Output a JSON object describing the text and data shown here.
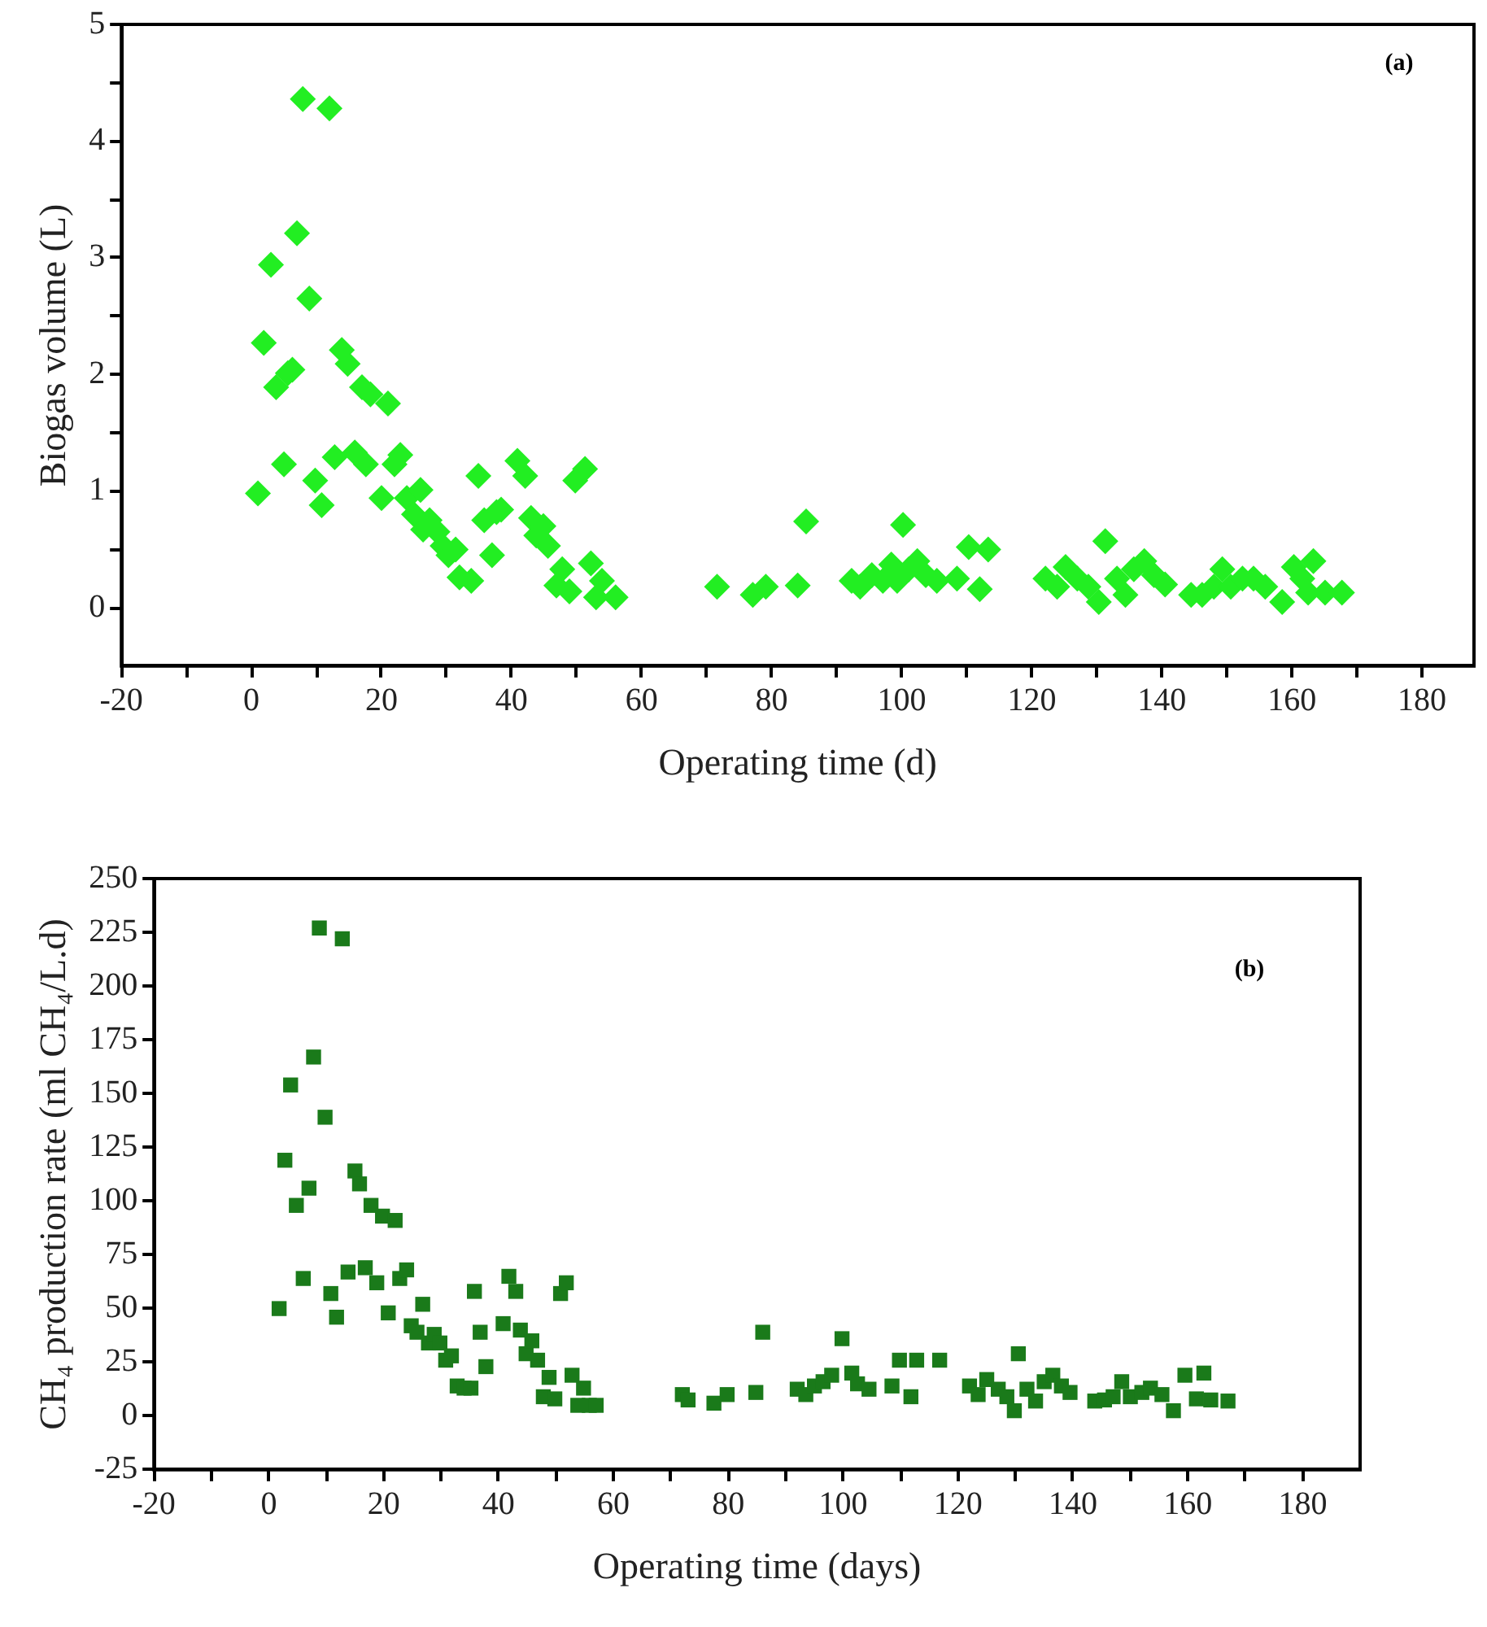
{
  "chart_data": [
    {
      "type": "scatter",
      "xlabel": "Operating time (d)",
      "ylabel": "Biogas volume (L)",
      "color": "#22ee22",
      "marker": "diamond",
      "grid": false,
      "legend": false,
      "annotations": [
        "(a)"
      ],
      "xlim": [
        -20,
        188
      ],
      "ylim": [
        -0.5,
        5
      ],
      "xticks": [
        -20,
        {
          "value": -10,
          "label": null
        },
        0,
        {
          "value": 10,
          "label": null
        },
        20,
        {
          "value": 30,
          "label": null
        },
        40,
        {
          "value": 50,
          "label": null
        },
        60,
        {
          "value": 70,
          "label": null
        },
        80,
        {
          "value": 90,
          "label": null
        },
        100,
        {
          "value": 110,
          "label": null
        },
        120,
        {
          "value": 130,
          "label": null
        },
        140,
        {
          "value": 150,
          "label": null
        },
        160,
        {
          "value": 170,
          "label": null
        },
        180
      ],
      "yticks": [
        0,
        {
          "value": 0.5,
          "label": null
        },
        1,
        {
          "value": 1.5,
          "label": null
        },
        2,
        {
          "value": 2.5,
          "label": null
        },
        3,
        {
          "value": 3.5,
          "label": null
        },
        4,
        {
          "value": 4.5,
          "label": null
        },
        5
      ],
      "x": [
        1,
        1.9,
        3,
        3.8,
        5,
        5.6,
        6.3,
        7,
        7.9,
        8.9,
        9.8,
        10.8,
        12,
        12.8,
        13.9,
        14.8,
        15.9,
        17,
        17.6,
        18.3,
        20,
        21,
        22,
        22.9,
        23.9,
        25,
        26,
        26.4,
        27.4,
        28.6,
        29.4,
        30.3,
        31.4,
        32,
        33.8,
        34.9,
        35.8,
        37,
        37.7,
        38.4,
        40.9,
        42.1,
        43,
        43.8,
        44.9,
        45.6,
        46.9,
        47.8,
        48.9,
        49.8,
        51.3,
        52.2,
        53,
        53.9,
        56,
        71.6,
        77.1,
        79.1,
        84,
        85.3,
        92.3,
        93.6,
        95.4,
        97.1,
        98.4,
        99.3,
        100.2,
        101.1,
        102.4,
        103.7,
        105.4,
        108.5,
        110.3,
        112,
        113.3,
        122.1,
        123.9,
        125.2,
        127,
        128.7,
        130.3,
        131.3,
        133.1,
        134.4,
        135.7,
        137.3,
        138.8,
        140.5,
        144.5,
        146.2,
        148,
        149.3,
        150.6,
        152.4,
        154.1,
        155.9,
        158.5,
        160.3,
        161.6,
        162.5,
        163.3,
        165.1,
        167.7
      ],
      "values": [
        0.98,
        2.27,
        2.94,
        1.89,
        1.23,
        2.01,
        2.04,
        3.21,
        4.36,
        2.65,
        1.09,
        0.88,
        4.28,
        1.29,
        2.21,
        2.09,
        1.33,
        1.89,
        1.23,
        1.83,
        0.94,
        1.75,
        1.23,
        1.31,
        0.94,
        0.8,
        1.01,
        0.67,
        0.75,
        0.65,
        0.53,
        0.45,
        0.5,
        0.26,
        0.23,
        1.13,
        0.75,
        0.45,
        0.82,
        0.84,
        1.26,
        1.13,
        0.77,
        0.62,
        0.7,
        0.53,
        0.19,
        0.33,
        0.14,
        1.09,
        1.19,
        0.38,
        0.09,
        0.23,
        0.09,
        0.18,
        0.11,
        0.18,
        0.19,
        0.74,
        0.23,
        0.18,
        0.28,
        0.23,
        0.37,
        0.23,
        0.71,
        0.33,
        0.4,
        0.28,
        0.23,
        0.25,
        0.52,
        0.16,
        0.5,
        0.25,
        0.18,
        0.35,
        0.25,
        0.18,
        0.05,
        0.57,
        0.25,
        0.11,
        0.33,
        0.4,
        0.28,
        0.2,
        0.11,
        0.11,
        0.18,
        0.33,
        0.18,
        0.25,
        0.25,
        0.18,
        0.05,
        0.35,
        0.25,
        0.13,
        0.4,
        0.13,
        0.13
      ]
    },
    {
      "type": "scatter",
      "xlabel": "Operating time (days)",
      "ylabel": "CH₄ production rate (ml CH₄/L.d)",
      "color": "#1a7a1a",
      "marker": "square",
      "grid": false,
      "legend": false,
      "annotations": [
        "(b)"
      ],
      "xlim": [
        -20,
        190
      ],
      "ylim": [
        -25,
        250
      ],
      "xticks": [
        -20,
        {
          "value": -10,
          "label": null
        },
        0,
        {
          "value": 10,
          "label": null
        },
        20,
        {
          "value": 30,
          "label": null
        },
        40,
        {
          "value": 50,
          "label": null
        },
        60,
        {
          "value": 70,
          "label": null
        },
        80,
        {
          "value": 90,
          "label": null
        },
        100,
        {
          "value": 110,
          "label": null
        },
        120,
        {
          "value": 130,
          "label": null
        },
        140,
        {
          "value": 150,
          "label": null
        },
        160,
        {
          "value": 170,
          "label": null
        },
        180
      ],
      "yticks": [
        -25,
        0,
        25,
        50,
        75,
        100,
        125,
        150,
        175,
        200,
        225,
        250
      ],
      "x": [
        1.8,
        2.8,
        3.8,
        4.8,
        6,
        7,
        7.8,
        8.8,
        9.8,
        10.8,
        11.8,
        12.8,
        13.8,
        15,
        15.8,
        16.8,
        17.8,
        18.8,
        19.8,
        20.8,
        22,
        22.8,
        24,
        24.8,
        25.8,
        26.8,
        27.8,
        28.8,
        29.8,
        30.8,
        31.8,
        32.8,
        34,
        35.2,
        35.8,
        36.8,
        37.8,
        40.8,
        41.8,
        43,
        43.8,
        44.8,
        45.8,
        46.8,
        47.8,
        48.8,
        49.8,
        50.8,
        51.8,
        52.8,
        53.8,
        54.8,
        55.8,
        57,
        72,
        73,
        77.5,
        79.8,
        84.8,
        86,
        92,
        93.5,
        95,
        96.5,
        98,
        99.8,
        101.5,
        102.5,
        104.5,
        108.5,
        109.8,
        111.8,
        112.8,
        116.8,
        122,
        123.5,
        125,
        127,
        128.5,
        129.8,
        130.5,
        132,
        133.5,
        135,
        136.5,
        138,
        139.5,
        143.8,
        145.5,
        147,
        148.5,
        150,
        152,
        153.5,
        155.5,
        157.5,
        159.5,
        161.5,
        162.8,
        164,
        167
      ],
      "values": [
        50,
        119,
        154,
        98,
        64,
        106,
        167,
        227,
        139,
        57,
        46,
        222,
        67,
        114,
        108,
        69,
        98,
        62,
        93,
        48,
        91,
        64,
        68,
        42,
        39,
        52,
        34,
        38,
        34,
        26,
        28,
        14,
        13,
        13,
        58,
        39,
        23,
        43,
        65,
        58,
        40,
        29,
        35,
        26,
        9,
        18,
        8,
        57,
        62,
        19,
        5,
        13,
        5,
        5,
        10,
        7.5,
        6,
        10,
        11,
        39,
        12.5,
        10,
        14,
        16,
        19,
        36,
        20,
        15,
        12.5,
        14,
        26,
        9,
        26,
        26,
        14,
        10,
        17,
        12.5,
        9,
        2.5,
        29,
        12.5,
        7,
        16,
        19,
        14,
        11,
        7,
        7.5,
        9,
        16,
        9,
        11,
        13,
        10,
        2.5,
        19,
        8,
        20,
        7.5,
        7
      ]
    }
  ]
}
